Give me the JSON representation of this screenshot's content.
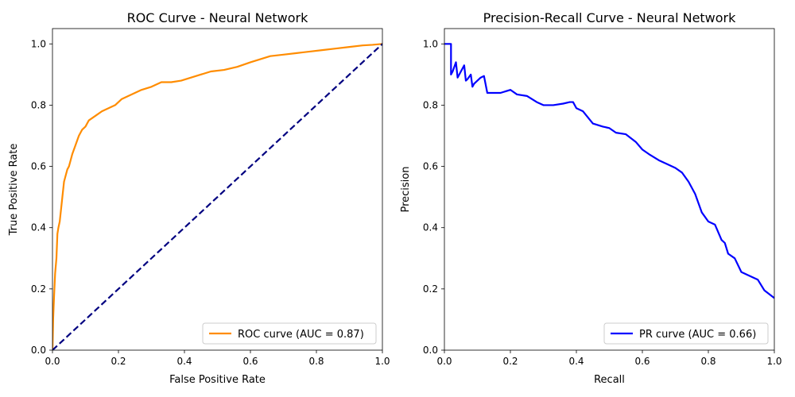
{
  "chart_data": [
    {
      "type": "line",
      "title": "ROC Curve - Neural Network",
      "xlabel": "False Positive Rate",
      "ylabel": "True Positive Rate",
      "xlim": [
        0.0,
        1.0
      ],
      "ylim": [
        0.0,
        1.05
      ],
      "xticks": [
        "0.0",
        "0.2",
        "0.4",
        "0.6",
        "0.8",
        "1.0"
      ],
      "yticks": [
        "0.0",
        "0.2",
        "0.4",
        "0.6",
        "0.8",
        "1.0"
      ],
      "grid": false,
      "legend_position": "lower-right",
      "series": [
        {
          "name": "ROC curve (AUC = 0.87)",
          "color": "#ff8c00",
          "style": "solid",
          "x": [
            0.0,
            0.002,
            0.005,
            0.008,
            0.012,
            0.015,
            0.018,
            0.022,
            0.025,
            0.03,
            0.035,
            0.04,
            0.045,
            0.05,
            0.055,
            0.06,
            0.07,
            0.08,
            0.09,
            0.1,
            0.11,
            0.13,
            0.15,
            0.17,
            0.19,
            0.21,
            0.23,
            0.25,
            0.27,
            0.3,
            0.33,
            0.36,
            0.39,
            0.42,
            0.45,
            0.48,
            0.52,
            0.56,
            0.6,
            0.63,
            0.66,
            0.7,
            0.74,
            0.78,
            0.82,
            0.86,
            0.9,
            0.94,
            0.97,
            1.0
          ],
          "y": [
            0.0,
            0.1,
            0.18,
            0.25,
            0.3,
            0.38,
            0.4,
            0.42,
            0.45,
            0.5,
            0.55,
            0.57,
            0.59,
            0.6,
            0.62,
            0.64,
            0.67,
            0.7,
            0.72,
            0.73,
            0.75,
            0.765,
            0.78,
            0.79,
            0.8,
            0.82,
            0.83,
            0.84,
            0.85,
            0.86,
            0.875,
            0.875,
            0.88,
            0.89,
            0.9,
            0.91,
            0.915,
            0.925,
            0.94,
            0.95,
            0.96,
            0.965,
            0.97,
            0.975,
            0.98,
            0.985,
            0.99,
            0.995,
            0.997,
            1.0
          ]
        },
        {
          "name": "",
          "color": "#000080",
          "style": "dashed",
          "x": [
            0.0,
            1.0
          ],
          "y": [
            0.0,
            1.0
          ]
        }
      ]
    },
    {
      "type": "line",
      "title": "Precision-Recall Curve - Neural Network",
      "xlabel": "Recall",
      "ylabel": "Precision",
      "xlim": [
        0.0,
        1.0
      ],
      "ylim": [
        0.0,
        1.05
      ],
      "xticks": [
        "0.0",
        "0.2",
        "0.4",
        "0.6",
        "0.8",
        "1.0"
      ],
      "yticks": [
        "0.0",
        "0.2",
        "0.4",
        "0.6",
        "0.8",
        "1.0"
      ],
      "grid": false,
      "legend_position": "lower-right",
      "series": [
        {
          "name": "PR curve (AUC = 0.66)",
          "color": "#0000ff",
          "style": "solid",
          "x": [
            0.0,
            0.02,
            0.02,
            0.025,
            0.035,
            0.04,
            0.045,
            0.05,
            0.06,
            0.065,
            0.07,
            0.08,
            0.085,
            0.09,
            0.1,
            0.11,
            0.12,
            0.13,
            0.15,
            0.17,
            0.2,
            0.22,
            0.25,
            0.28,
            0.3,
            0.33,
            0.36,
            0.38,
            0.39,
            0.4,
            0.42,
            0.45,
            0.48,
            0.5,
            0.52,
            0.55,
            0.58,
            0.6,
            0.62,
            0.65,
            0.68,
            0.7,
            0.72,
            0.74,
            0.76,
            0.78,
            0.8,
            0.82,
            0.84,
            0.85,
            0.86,
            0.88,
            0.9,
            0.92,
            0.95,
            0.97,
            1.0
          ],
          "y": [
            1.0,
            1.0,
            0.9,
            0.91,
            0.94,
            0.89,
            0.9,
            0.91,
            0.93,
            0.88,
            0.885,
            0.9,
            0.86,
            0.87,
            0.88,
            0.89,
            0.895,
            0.84,
            0.84,
            0.84,
            0.85,
            0.835,
            0.83,
            0.81,
            0.8,
            0.8,
            0.805,
            0.81,
            0.81,
            0.79,
            0.78,
            0.74,
            0.73,
            0.725,
            0.71,
            0.705,
            0.68,
            0.655,
            0.64,
            0.62,
            0.605,
            0.595,
            0.58,
            0.55,
            0.51,
            0.45,
            0.42,
            0.41,
            0.36,
            0.35,
            0.315,
            0.3,
            0.255,
            0.245,
            0.23,
            0.195,
            0.17
          ]
        }
      ]
    }
  ]
}
